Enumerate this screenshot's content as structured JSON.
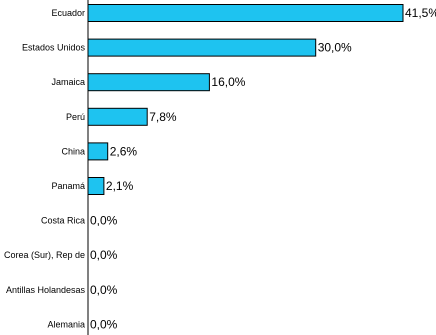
{
  "chart_data": {
    "type": "bar",
    "orientation": "horizontal",
    "categories": [
      "Ecuador",
      "Estados Unidos",
      "Jamaica",
      "Perú",
      "China",
      "Panamá",
      "Costa Rica",
      "Corea (Sur), Rep de",
      "Antillas Holandesas",
      "Alemania"
    ],
    "values": [
      41.5,
      30.0,
      16.0,
      7.8,
      2.6,
      2.1,
      0.0,
      0.0,
      0.0,
      0.0
    ],
    "value_labels": [
      "41,5%",
      "30,0%",
      "16,0%",
      "7,8%",
      "2,6%",
      "2,1%",
      "0,0%",
      "0,0%",
      "0,0%",
      "0,0%"
    ],
    "xlim": [
      0,
      41.5
    ],
    "grid": false,
    "legend": "none",
    "colors": {
      "bar_fill": "#1EC3F0",
      "bar_stroke": "#000000",
      "text": "#000000"
    }
  }
}
